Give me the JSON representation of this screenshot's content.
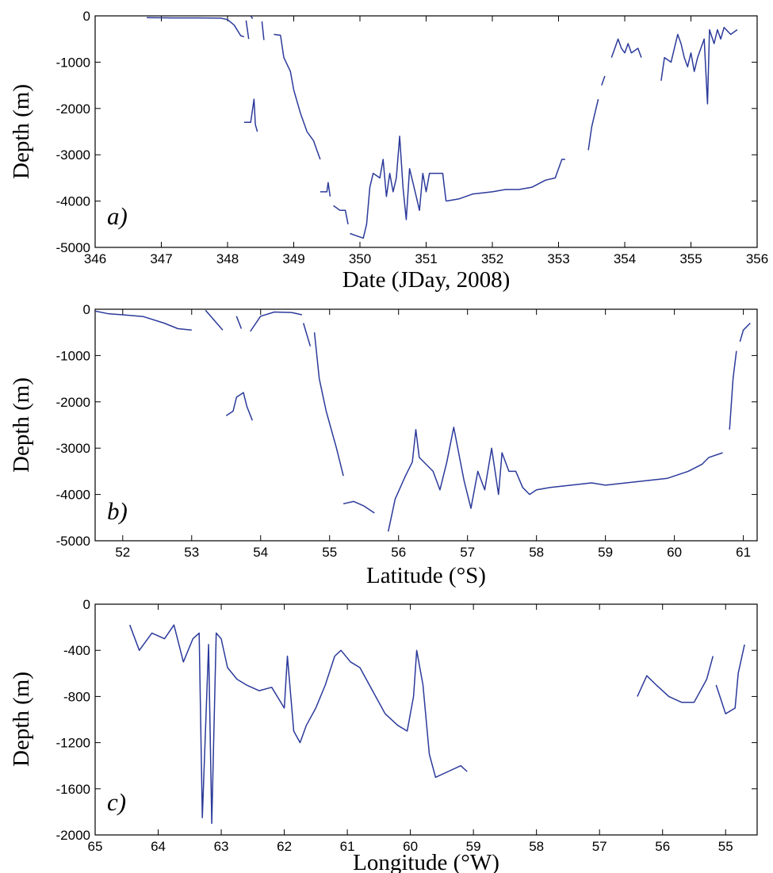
{
  "chart_data": [
    {
      "type": "line",
      "panel_label": "a)",
      "xlabel": "Date (JDay, 2008)",
      "ylabel": "Depth (m)",
      "xlim": [
        346,
        356
      ],
      "ylim": [
        -5000,
        0
      ],
      "x_reversed": false,
      "xticks": [
        346,
        347,
        348,
        349,
        350,
        351,
        352,
        353,
        354,
        355,
        356
      ],
      "xtick_labels": [
        "346",
        "347",
        "348",
        "349",
        "350",
        "351",
        "352",
        "353",
        "354",
        "355",
        "356"
      ],
      "yticks": [
        0,
        -1000,
        -2000,
        -3000,
        -4000,
        -5000
      ],
      "ytick_labels": [
        "0",
        "-1000",
        "-2000",
        "-3000",
        "-4000",
        "-5000"
      ],
      "series_color": "#2b3a9a",
      "segments": [
        [
          [
            346.78,
            -40
          ],
          [
            347.2,
            -45
          ],
          [
            347.6,
            -45
          ],
          [
            347.9,
            -50
          ],
          [
            348.0,
            -80
          ],
          [
            348.1,
            -200
          ],
          [
            348.2,
            -430
          ],
          [
            348.25,
            -450
          ]
        ],
        [
          [
            348.28,
            -100
          ],
          [
            348.32,
            -500
          ]
        ],
        [
          [
            348.35,
            -1
          ],
          [
            348.38,
            -60
          ]
        ],
        [
          [
            348.52,
            -120
          ],
          [
            348.55,
            -520
          ]
        ],
        [
          [
            348.25,
            -2300
          ],
          [
            348.35,
            -2300
          ],
          [
            348.4,
            -1800
          ],
          [
            348.42,
            -2350
          ],
          [
            348.45,
            -2500
          ]
        ],
        [
          [
            348.7,
            -400
          ],
          [
            348.8,
            -420
          ],
          [
            348.85,
            -900
          ],
          [
            348.95,
            -1200
          ],
          [
            349.0,
            -1600
          ],
          [
            349.1,
            -2100
          ],
          [
            349.2,
            -2500
          ],
          [
            349.3,
            -2700
          ],
          [
            349.35,
            -2900
          ],
          [
            349.4,
            -3100
          ]
        ],
        [
          [
            349.4,
            -3800
          ],
          [
            349.5,
            -3800
          ],
          [
            349.52,
            -3600
          ],
          [
            349.55,
            -3900
          ]
        ],
        [
          [
            349.6,
            -4100
          ],
          [
            349.7,
            -4200
          ],
          [
            349.78,
            -4200
          ],
          [
            349.82,
            -4500
          ]
        ],
        [
          [
            349.85,
            -4700
          ],
          [
            349.95,
            -4750
          ],
          [
            350.05,
            -4800
          ],
          [
            350.1,
            -4500
          ],
          [
            350.15,
            -3700
          ],
          [
            350.2,
            -3400
          ],
          [
            350.3,
            -3500
          ],
          [
            350.35,
            -3100
          ],
          [
            350.4,
            -3900
          ],
          [
            350.45,
            -3400
          ],
          [
            350.5,
            -3800
          ],
          [
            350.55,
            -3500
          ],
          [
            350.6,
            -2600
          ],
          [
            350.65,
            -3700
          ],
          [
            350.7,
            -4400
          ],
          [
            350.75,
            -3300
          ],
          [
            350.8,
            -3600
          ],
          [
            350.85,
            -3900
          ],
          [
            350.9,
            -4200
          ],
          [
            350.95,
            -3400
          ],
          [
            351.0,
            -3800
          ],
          [
            351.05,
            -3400
          ],
          [
            351.15,
            -3400
          ],
          [
            351.25,
            -3400
          ],
          [
            351.3,
            -4000
          ]
        ],
        [
          [
            351.3,
            -4000
          ],
          [
            351.5,
            -3950
          ],
          [
            351.7,
            -3850
          ],
          [
            352.0,
            -3800
          ],
          [
            352.2,
            -3750
          ],
          [
            352.4,
            -3750
          ],
          [
            352.6,
            -3700
          ],
          [
            352.8,
            -3550
          ],
          [
            352.95,
            -3500
          ],
          [
            353.0,
            -3300
          ],
          [
            353.05,
            -3100
          ],
          [
            353.1,
            -3100
          ]
        ],
        [
          [
            353.45,
            -2900
          ],
          [
            353.5,
            -2400
          ],
          [
            353.55,
            -2100
          ],
          [
            353.6,
            -1800
          ]
        ],
        [
          [
            353.65,
            -1500
          ],
          [
            353.7,
            -1300
          ]
        ],
        [
          [
            353.8,
            -900
          ],
          [
            353.85,
            -700
          ],
          [
            353.9,
            -500
          ],
          [
            353.95,
            -700
          ],
          [
            354.0,
            -800
          ],
          [
            354.05,
            -600
          ],
          [
            354.1,
            -800
          ],
          [
            354.2,
            -700
          ],
          [
            354.25,
            -900
          ]
        ],
        [
          [
            354.55,
            -1400
          ],
          [
            354.6,
            -900
          ],
          [
            354.7,
            -1000
          ],
          [
            354.75,
            -700
          ],
          [
            354.8,
            -400
          ],
          [
            354.85,
            -600
          ],
          [
            354.9,
            -900
          ],
          [
            354.95,
            -1100
          ],
          [
            355.0,
            -800
          ],
          [
            355.05,
            -1200
          ],
          [
            355.1,
            -900
          ],
          [
            355.15,
            -700
          ],
          [
            355.2,
            -500
          ],
          [
            355.25,
            -1900
          ],
          [
            355.28,
            -300
          ],
          [
            355.35,
            -600
          ],
          [
            355.4,
            -300
          ],
          [
            355.45,
            -500
          ],
          [
            355.5,
            -250
          ],
          [
            355.6,
            -400
          ],
          [
            355.7,
            -300
          ]
        ]
      ]
    },
    {
      "type": "line",
      "panel_label": "b)",
      "xlabel": "Latitude (°S)",
      "ylabel": "Depth (m)",
      "xlim": [
        51.6,
        61.2
      ],
      "ylim": [
        -5000,
        0
      ],
      "x_reversed": false,
      "xticks": [
        52,
        53,
        54,
        55,
        56,
        57,
        58,
        59,
        60,
        61
      ],
      "xtick_labels": [
        "52",
        "53",
        "54",
        "55",
        "56",
        "57",
        "58",
        "59",
        "60",
        "61"
      ],
      "yticks": [
        0,
        -1000,
        -2000,
        -3000,
        -4000,
        -5000
      ],
      "ytick_labels": [
        "0",
        "-1000",
        "-2000",
        "-3000",
        "-4000",
        "-5000"
      ],
      "series_color": "#2b3a9a",
      "segments": [
        [
          [
            51.6,
            -40
          ],
          [
            51.8,
            -100
          ],
          [
            52.0,
            -120
          ],
          [
            52.3,
            -160
          ],
          [
            52.6,
            -300
          ],
          [
            52.8,
            -420
          ],
          [
            53.0,
            -450
          ]
        ],
        [
          [
            53.2,
            -20
          ],
          [
            53.45,
            -450
          ]
        ],
        [
          [
            53.65,
            -150
          ],
          [
            53.72,
            -420
          ]
        ],
        [
          [
            53.85,
            -480
          ],
          [
            54.0,
            -150
          ],
          [
            54.2,
            -60
          ],
          [
            54.45,
            -70
          ],
          [
            54.6,
            -120
          ]
        ],
        [
          [
            53.5,
            -2300
          ],
          [
            53.6,
            -2200
          ],
          [
            53.65,
            -1900
          ],
          [
            53.75,
            -1800
          ],
          [
            53.8,
            -2100
          ],
          [
            53.88,
            -2400
          ]
        ],
        [
          [
            54.62,
            -300
          ],
          [
            54.72,
            -800
          ]
        ],
        [
          [
            54.78,
            -500
          ],
          [
            54.85,
            -1500
          ],
          [
            54.95,
            -2200
          ],
          [
            55.1,
            -3000
          ],
          [
            55.2,
            -3600
          ]
        ],
        [
          [
            55.2,
            -4200
          ],
          [
            55.35,
            -4150
          ],
          [
            55.5,
            -4250
          ],
          [
            55.65,
            -4400
          ]
        ],
        [
          [
            55.85,
            -4800
          ],
          [
            55.95,
            -4100
          ],
          [
            56.1,
            -3600
          ],
          [
            56.2,
            -3300
          ],
          [
            56.25,
            -2600
          ],
          [
            56.3,
            -3200
          ],
          [
            56.5,
            -3500
          ],
          [
            56.6,
            -3900
          ],
          [
            56.7,
            -3300
          ],
          [
            56.8,
            -2550
          ],
          [
            56.95,
            -3700
          ],
          [
            57.05,
            -4300
          ],
          [
            57.15,
            -3500
          ],
          [
            57.25,
            -3900
          ],
          [
            57.35,
            -3000
          ],
          [
            57.45,
            -4000
          ],
          [
            57.5,
            -3100
          ],
          [
            57.6,
            -3500
          ],
          [
            57.7,
            -3500
          ],
          [
            57.8,
            -3850
          ],
          [
            57.9,
            -4000
          ],
          [
            58.0,
            -3900
          ],
          [
            58.2,
            -3850
          ],
          [
            58.5,
            -3800
          ],
          [
            58.8,
            -3750
          ],
          [
            59.0,
            -3800
          ],
          [
            59.3,
            -3750
          ],
          [
            59.6,
            -3700
          ],
          [
            59.9,
            -3650
          ],
          [
            60.2,
            -3500
          ],
          [
            60.4,
            -3350
          ],
          [
            60.5,
            -3200
          ],
          [
            60.7,
            -3100
          ]
        ],
        [
          [
            60.8,
            -2600
          ],
          [
            60.85,
            -1500
          ],
          [
            60.9,
            -900
          ]
        ],
        [
          [
            60.95,
            -700
          ],
          [
            61.0,
            -450
          ],
          [
            61.1,
            -300
          ]
        ]
      ]
    },
    {
      "type": "line",
      "panel_label": "c)",
      "xlabel": "Longitude (°W)",
      "ylabel": "Depth (m)",
      "xlim": [
        65,
        54.5
      ],
      "ylim": [
        -2000,
        0
      ],
      "x_reversed": true,
      "xticks": [
        65,
        64,
        63,
        62,
        61,
        60,
        59,
        58,
        57,
        56,
        55
      ],
      "xtick_labels": [
        "65",
        "64",
        "63",
        "62",
        "61",
        "60",
        "59",
        "58",
        "57",
        "56",
        "55"
      ],
      "yticks": [
        0,
        -400,
        -800,
        -1200,
        -1600,
        -2000
      ],
      "ytick_labels": [
        "0",
        "-400",
        "-800",
        "-1200",
        "-1600",
        "-2000"
      ],
      "series_color": "#2b3a9a",
      "segments": [
        [
          [
            64.45,
            -180
          ],
          [
            64.3,
            -400
          ],
          [
            64.1,
            -250
          ],
          [
            63.9,
            -300
          ],
          [
            63.75,
            -180
          ],
          [
            63.6,
            -500
          ],
          [
            63.45,
            -300
          ],
          [
            63.35,
            -250
          ],
          [
            63.3,
            -1850
          ],
          [
            63.2,
            -350
          ],
          [
            63.15,
            -1900
          ],
          [
            63.08,
            -250
          ],
          [
            63.0,
            -300
          ],
          [
            62.9,
            -550
          ],
          [
            62.75,
            -650
          ],
          [
            62.6,
            -700
          ],
          [
            62.4,
            -750
          ],
          [
            62.2,
            -720
          ],
          [
            62.0,
            -900
          ],
          [
            61.95,
            -450
          ],
          [
            61.85,
            -1100
          ],
          [
            61.75,
            -1200
          ],
          [
            61.65,
            -1050
          ],
          [
            61.5,
            -900
          ],
          [
            61.35,
            -700
          ],
          [
            61.2,
            -450
          ],
          [
            61.1,
            -400
          ],
          [
            60.95,
            -500
          ],
          [
            60.8,
            -550
          ],
          [
            60.6,
            -750
          ],
          [
            60.4,
            -950
          ],
          [
            60.2,
            -1050
          ],
          [
            60.05,
            -1100
          ],
          [
            59.95,
            -800
          ],
          [
            59.9,
            -400
          ],
          [
            59.8,
            -700
          ],
          [
            59.7,
            -1300
          ],
          [
            59.6,
            -1500
          ],
          [
            59.4,
            -1450
          ],
          [
            59.2,
            -1400
          ],
          [
            59.1,
            -1450
          ]
        ],
        [
          [
            56.4,
            -800
          ],
          [
            56.25,
            -620
          ],
          [
            56.1,
            -700
          ],
          [
            55.9,
            -800
          ],
          [
            55.7,
            -850
          ],
          [
            55.5,
            -850
          ],
          [
            55.3,
            -650
          ],
          [
            55.2,
            -450
          ]
        ],
        [
          [
            55.15,
            -700
          ],
          [
            55.0,
            -950
          ],
          [
            54.85,
            -900
          ],
          [
            54.8,
            -600
          ],
          [
            54.7,
            -350
          ]
        ]
      ]
    }
  ]
}
